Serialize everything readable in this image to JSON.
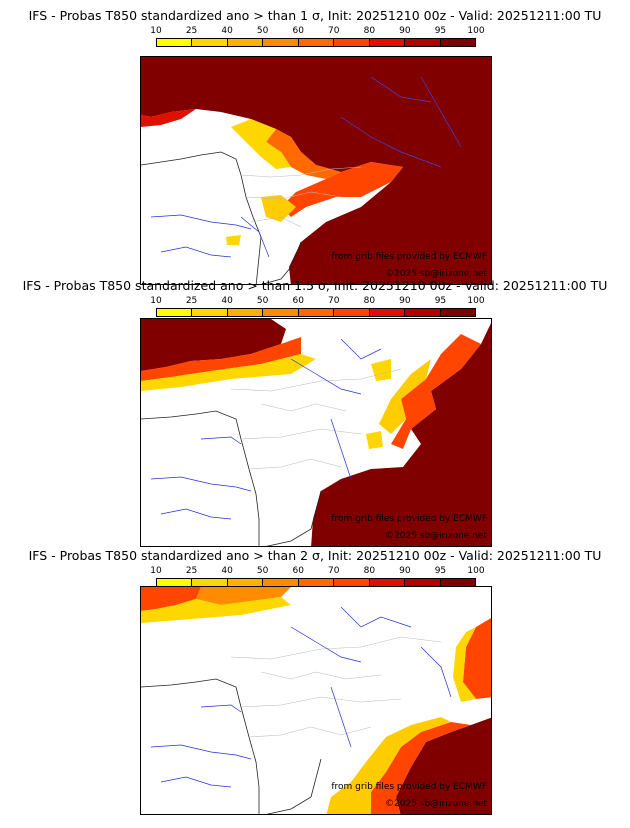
{
  "colorbar": {
    "ticks": [
      "10",
      "25",
      "40",
      "50",
      "60",
      "70",
      "80",
      "90",
      "95",
      "100"
    ],
    "colors": [
      "#ffff00",
      "#ffd700",
      "#ffb000",
      "#ff8c00",
      "#ff6a00",
      "#ff4500",
      "#e01000",
      "#b00000",
      "#800000"
    ]
  },
  "panels": [
    {
      "title": "IFS - Probas T850  standardized ano > than 1 σ, Init: 20251210 00z - Valid: 20251211:00 TU",
      "credit_source": "from grib files provided by ECMWF",
      "credit_copyright": "©2025 sb@irizone.net"
    },
    {
      "title": "IFS - Probas T850  standardized ano > than 1.5 σ, Init: 20251210 00z - Valid: 20251211:00 TU",
      "credit_source": "from grib files provided by ECMWF",
      "credit_copyright": "©2025 sb@irizone.net"
    },
    {
      "title": "IFS - Probas T850  standardized ano > than 2 σ, Init: 20251210 00z - Valid: 20251211:00 TU",
      "credit_source": "from grib files provided by ECMWF",
      "credit_copyright": "©2025 sb@irizone.net"
    }
  ]
}
